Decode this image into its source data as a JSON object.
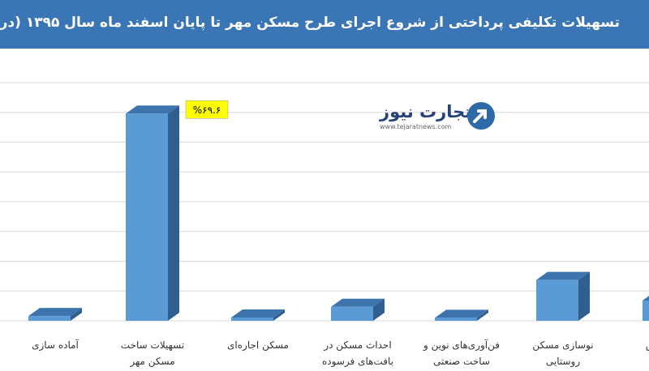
{
  "chart_data": {
    "type": "bar",
    "title": "تسهیلات تکلیفی پرداختی از شروع اجرای طرح مسکن مهر تا پایان اسفند ماه سال ۱۳۹۵ (درصد)",
    "categories": [
      "آماده سازی",
      "تسهیلات ساخت مسکن مهر",
      "مسکن اجاره‌ای",
      "احداث مسکن در بافت‌های فرسوده",
      "فن‌آوری‌های نوین و ساخت صنعتی",
      "نوسازی مسکن روستایی",
      "اقشار خاص"
    ],
    "category_lines": [
      [
        "آماده سازی"
      ],
      [
        "تسهیلات ساخت",
        "مسکن مهر"
      ],
      [
        "مسکن اجاره‌ای"
      ],
      [
        "احداث مسکن در",
        "بافت‌های فرسوده"
      ],
      [
        "فن‌آوری‌های نوین و",
        "ساخت صنعتی"
      ],
      [
        "نوسازی مسکن",
        "روستایی"
      ],
      [
        "اقشار خاص"
      ]
    ],
    "values": [
      1.6,
      69.6,
      1.1,
      4.7,
      1.0,
      13.7,
      6.8
    ],
    "data_labels": [
      "",
      "%۶۹.۶",
      "",
      "",
      "",
      "",
      ""
    ],
    "ylim": [
      0,
      80
    ],
    "grid": true,
    "colors": {
      "bar_front": "#5b9bd5",
      "bar_top": "#3d74ad",
      "bar_side": "#2f5f91",
      "label_bg": "#ffff00",
      "grid": "#d9d9d9"
    }
  },
  "logo": {
    "brand": "تجارت نیوز",
    "site": "www.tejaratnews.com",
    "icon": "arrow-circle-icon"
  }
}
